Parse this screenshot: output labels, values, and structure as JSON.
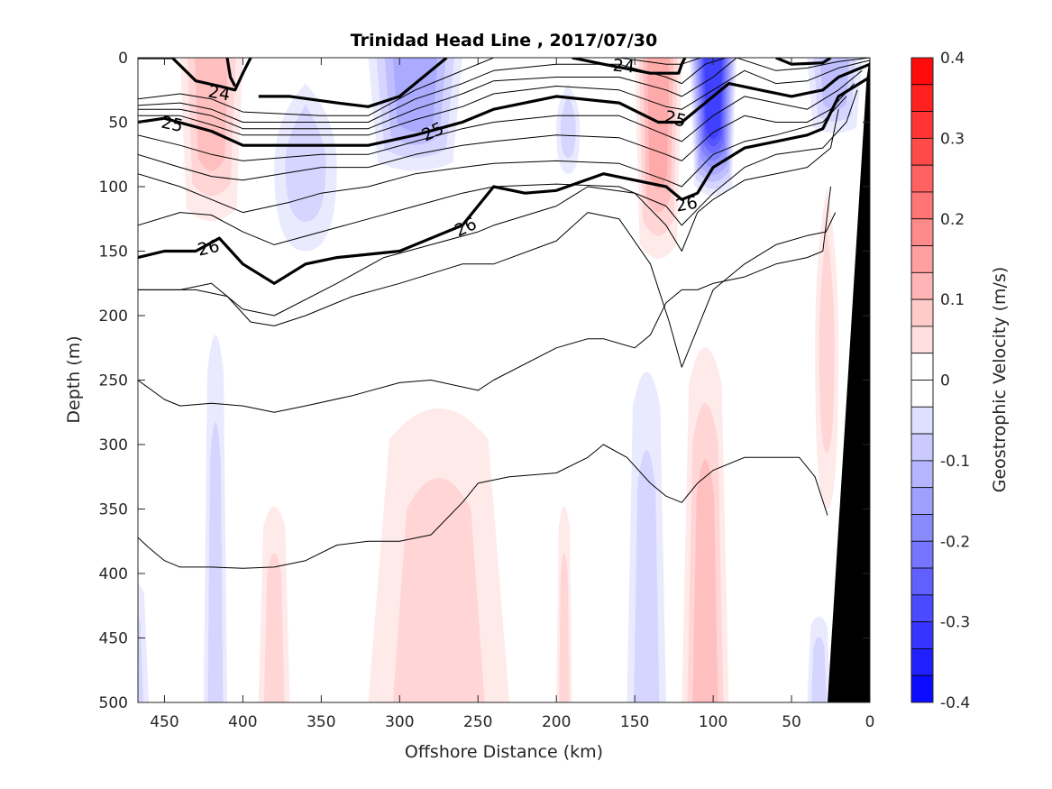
{
  "chart_data": {
    "type": "contour-section",
    "title": "Trinidad Head Line , 2017/07/30",
    "xlabel": "Offshore Distance (km)",
    "ylabel": "Depth (m)",
    "xlim": [
      467,
      0
    ],
    "ylim": [
      0,
      500
    ],
    "x_reversed": true,
    "y_reversed": true,
    "xticks": [
      450,
      400,
      350,
      300,
      250,
      200,
      150,
      100,
      50,
      0
    ],
    "xtick_labels": [
      "450",
      "400",
      "350",
      "300",
      "250",
      "200",
      "150",
      "100",
      "50",
      "0"
    ],
    "yticks": [
      0,
      50,
      100,
      150,
      200,
      250,
      300,
      350,
      400,
      450,
      500
    ],
    "ytick_labels": [
      "0",
      "50",
      "100",
      "150",
      "200",
      "250",
      "300",
      "350",
      "400",
      "450",
      "500"
    ],
    "colorbar": {
      "label": "Geostrophic Velocity (m/s)",
      "range": [
        -0.4,
        0.4
      ],
      "levels": 24,
      "ticks": [
        0.4,
        0.3,
        0.2,
        0.1,
        0,
        -0.1,
        -0.2,
        -0.3,
        -0.4
      ],
      "tick_labels": [
        "0.4",
        "0.3",
        "0.2",
        "0.1",
        "0",
        "-0.1",
        "-0.2",
        "-0.3",
        "-0.4"
      ],
      "colormap": "blue-white-red",
      "positive_color": "#ff0000",
      "negative_color": "#0000ff"
    },
    "velocity_patches": [
      {
        "sign": "positive",
        "x": [
          440,
          400
        ],
        "depth": [
          0,
          130
        ],
        "peak": 0.1
      },
      {
        "sign": "negative",
        "x": [
          380,
          340
        ],
        "depth": [
          20,
          150
        ],
        "peak": -0.04
      },
      {
        "sign": "negative",
        "x": [
          320,
          260
        ],
        "depth": [
          0,
          90
        ],
        "peak": -0.13
      },
      {
        "sign": "negative",
        "x": [
          200,
          185
        ],
        "depth": [
          20,
          90
        ],
        "peak": -0.05
      },
      {
        "sign": "positive",
        "x": [
          150,
          120
        ],
        "depth": [
          0,
          160
        ],
        "peak": 0.13
      },
      {
        "sign": "negative",
        "x": [
          115,
          85
        ],
        "depth": [
          0,
          110
        ],
        "peak": -0.3
      },
      {
        "sign": "negative",
        "x": [
          40,
          5
        ],
        "depth": [
          0,
          60
        ],
        "peak": -0.1
      },
      {
        "sign": "negative",
        "x": [
          425,
          410
        ],
        "depth": [
          200,
          500
        ],
        "peak": -0.04
      },
      {
        "sign": "positive",
        "x": [
          320,
          230
        ],
        "depth": [
          260,
          500
        ],
        "peak": 0.04
      },
      {
        "sign": "positive",
        "x": [
          390,
          370
        ],
        "depth": [
          340,
          500
        ],
        "peak": 0.04
      },
      {
        "sign": "positive",
        "x": [
          200,
          190
        ],
        "depth": [
          340,
          500
        ],
        "peak": 0.04
      },
      {
        "sign": "negative",
        "x": [
          155,
          130
        ],
        "depth": [
          230,
          500
        ],
        "peak": -0.06
      },
      {
        "sign": "positive",
        "x": [
          120,
          90
        ],
        "depth": [
          210,
          500
        ],
        "peak": 0.1
      },
      {
        "sign": "positive",
        "x": [
          35,
          20
        ],
        "depth": [
          100,
          350
        ],
        "peak": 0.04
      },
      {
        "sign": "negative",
        "x": [
          480,
          460
        ],
        "depth": [
          400,
          500
        ],
        "peak": -0.04
      },
      {
        "sign": "negative",
        "x": [
          40,
          25
        ],
        "depth": [
          430,
          500
        ],
        "peak": -0.04
      }
    ],
    "density_contours": [
      {
        "level": "24",
        "bold": true,
        "label": "24",
        "x": [
          467,
          445,
          430,
          415,
          405,
          400,
          395
        ],
        "depth": [
          0,
          0,
          18,
          22,
          25,
          12,
          0
        ]
      },
      {
        "level": "24-b",
        "bold": true,
        "label": "",
        "x": [
          410,
          408,
          405
        ],
        "depth": [
          0,
          15,
          22
        ]
      },
      {
        "level": "24-c",
        "bold": true,
        "label": "24",
        "x": [
          190,
          170,
          140,
          122,
          120,
          118
        ],
        "depth": [
          0,
          5,
          12,
          12,
          5,
          0
        ]
      },
      {
        "level": "24-d",
        "bold": true,
        "label": "",
        "x": [
          60,
          50,
          30,
          25
        ],
        "depth": [
          0,
          5,
          4,
          0
        ]
      },
      {
        "level": "24-e",
        "bold": true,
        "label": "",
        "x": [
          390,
          370,
          340,
          320,
          300,
          270
        ],
        "depth": [
          30,
          30,
          35,
          38,
          30,
          0
        ]
      },
      {
        "level": "24.2",
        "bold": false,
        "label": "",
        "x": [
          467,
          440,
          420,
          400,
          350,
          320,
          290,
          260,
          240,
          200,
          160,
          130,
          120,
          108,
          100
        ],
        "depth": [
          32,
          28,
          32,
          42,
          45,
          45,
          25,
          10,
          0,
          0,
          0,
          5,
          5,
          0,
          0
        ]
      },
      {
        "level": "24.4",
        "bold": false,
        "label": "",
        "x": [
          467,
          440,
          420,
          400,
          350,
          320,
          290,
          260,
          240,
          200,
          160,
          130,
          120,
          105,
          92
        ],
        "depth": [
          37,
          35,
          40,
          50,
          50,
          50,
          32,
          20,
          10,
          5,
          5,
          15,
          20,
          5,
          0
        ]
      },
      {
        "level": "24.6",
        "bold": false,
        "label": "",
        "x": [
          467,
          440,
          420,
          400,
          350,
          320,
          290,
          260,
          240,
          200,
          160,
          130,
          120,
          100,
          85,
          60,
          40,
          20,
          0
        ],
        "depth": [
          40,
          40,
          45,
          55,
          55,
          55,
          40,
          28,
          18,
          15,
          15,
          25,
          30,
          15,
          0,
          10,
          8,
          3,
          0
        ]
      },
      {
        "level": "24.8",
        "bold": false,
        "label": "",
        "x": [
          467,
          440,
          420,
          400,
          350,
          320,
          290,
          260,
          240,
          200,
          160,
          130,
          120,
          100,
          80,
          60,
          40,
          20,
          0
        ],
        "depth": [
          45,
          45,
          52,
          60,
          60,
          60,
          48,
          38,
          28,
          22,
          25,
          38,
          40,
          25,
          10,
          20,
          18,
          8,
          2
        ]
      },
      {
        "level": "25",
        "bold": true,
        "label": "25",
        "x": [
          467,
          450,
          420,
          400,
          370,
          340,
          320,
          290,
          260,
          240,
          200,
          160,
          135,
          120,
          110,
          90,
          70,
          50,
          30,
          20,
          0
        ],
        "depth": [
          50,
          47,
          57,
          68,
          68,
          68,
          68,
          60,
          50,
          40,
          30,
          35,
          50,
          50,
          40,
          20,
          25,
          30,
          25,
          15,
          5
        ]
      },
      {
        "level": "25.2",
        "bold": false,
        "label": "",
        "x": [
          467,
          440,
          420,
          400,
          350,
          320,
          290,
          260,
          240,
          200,
          160,
          130,
          120,
          100,
          80,
          60,
          40,
          20,
          5
        ],
        "depth": [
          60,
          68,
          75,
          80,
          75,
          75,
          65,
          55,
          50,
          45,
          45,
          60,
          65,
          45,
          30,
          35,
          40,
          25,
          10
        ]
      },
      {
        "level": "25.4",
        "bold": false,
        "label": "",
        "x": [
          467,
          440,
          420,
          400,
          350,
          320,
          290,
          260,
          240,
          200,
          160,
          130,
          120,
          100,
          80,
          60,
          40,
          25,
          10
        ],
        "depth": [
          75,
          85,
          92,
          95,
          85,
          85,
          75,
          68,
          65,
          60,
          62,
          75,
          80,
          58,
          45,
          50,
          50,
          40,
          20
        ]
      },
      {
        "level": "25.6",
        "bold": false,
        "label": "",
        "x": [
          467,
          440,
          420,
          400,
          370,
          350,
          320,
          290,
          260,
          240,
          200,
          160,
          130,
          120,
          100,
          80,
          60,
          30,
          15
        ],
        "depth": [
          90,
          100,
          110,
          120,
          112,
          105,
          100,
          90,
          85,
          82,
          80,
          82,
          95,
          100,
          75,
          65,
          60,
          50,
          30
        ]
      },
      {
        "level": "25.8",
        "bold": false,
        "label": "",
        "x": [
          467,
          440,
          420,
          400,
          380,
          350,
          320,
          290,
          260,
          240,
          200,
          160,
          130,
          120,
          100,
          80,
          60,
          30,
          15,
          8
        ],
        "depth": [
          130,
          120,
          122,
          135,
          145,
          135,
          125,
          115,
          105,
          100,
          98,
          100,
          115,
          130,
          105,
          85,
          75,
          70,
          50,
          25
        ]
      },
      {
        "level": "26",
        "bold": true,
        "label": "26",
        "x": [
          467,
          450,
          430,
          415,
          400,
          380,
          360,
          340,
          300,
          280,
          260,
          240,
          220,
          200,
          170,
          150,
          130,
          120,
          110,
          100,
          80,
          60,
          40,
          30,
          20,
          0
        ],
        "depth": [
          155,
          150,
          150,
          140,
          160,
          175,
          160,
          155,
          150,
          140,
          130,
          100,
          105,
          103,
          90,
          95,
          100,
          110,
          105,
          85,
          70,
          65,
          60,
          55,
          30,
          15
        ]
      },
      {
        "level": "26.2",
        "bold": false,
        "label": "",
        "x": [
          467,
          440,
          420,
          400,
          380,
          340,
          310,
          280,
          250,
          240,
          200,
          180,
          150,
          130,
          120,
          110,
          100,
          80,
          60,
          40,
          25,
          20
        ],
        "depth": [
          180,
          180,
          175,
          195,
          200,
          175,
          155,
          145,
          135,
          130,
          115,
          100,
          105,
          130,
          150,
          120,
          110,
          95,
          90,
          85,
          70,
          40
        ]
      },
      {
        "level": "26.4",
        "bold": false,
        "label": "",
        "x": [
          467,
          450,
          430,
          410,
          395,
          380,
          360,
          330,
          300,
          260,
          240,
          200,
          180,
          160,
          140,
          128,
          120,
          110,
          100,
          80,
          60,
          40,
          28,
          22
        ],
        "depth": [
          180,
          180,
          180,
          185,
          205,
          208,
          200,
          185,
          175,
          160,
          160,
          142,
          120,
          125,
          160,
          205,
          240,
          210,
          180,
          160,
          145,
          138,
          135,
          120
        ]
      },
      {
        "level": "26.6",
        "bold": false,
        "label": "",
        "x": [
          467,
          450,
          440,
          420,
          400,
          380,
          360,
          330,
          300,
          280,
          250,
          240,
          200,
          180,
          170,
          150,
          140,
          130,
          120,
          110,
          100,
          80,
          60,
          40,
          30,
          25
        ],
        "depth": [
          250,
          265,
          270,
          268,
          270,
          275,
          270,
          262,
          252,
          250,
          258,
          250,
          225,
          218,
          218,
          225,
          215,
          190,
          180,
          180,
          175,
          170,
          160,
          155,
          150,
          100
        ]
      },
      {
        "level": "26.8",
        "bold": false,
        "label": "",
        "x": [
          467,
          460,
          450,
          440,
          420,
          400,
          380,
          360,
          340,
          320,
          300,
          280,
          260,
          250,
          230,
          200,
          180,
          170,
          155,
          140,
          130,
          120,
          110,
          100,
          80,
          60,
          45,
          35,
          27
        ],
        "depth": [
          372,
          380,
          390,
          395,
          395,
          396,
          395,
          390,
          378,
          375,
          375,
          370,
          345,
          330,
          325,
          322,
          310,
          300,
          310,
          330,
          340,
          345,
          330,
          320,
          310,
          310,
          310,
          325,
          355
        ]
      }
    ],
    "bathymetry": {
      "color": "#000000",
      "x": [
        0,
        2,
        27,
        0
      ],
      "depth": [
        0,
        15,
        500,
        500
      ]
    }
  }
}
